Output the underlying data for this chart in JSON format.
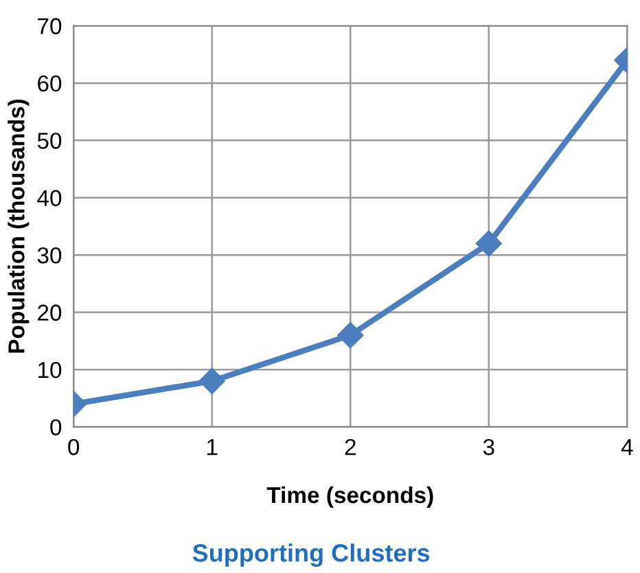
{
  "chart_data": {
    "type": "line",
    "xlabel": "Time (seconds)",
    "ylabel": "Population (thousands)",
    "x": [
      0,
      1,
      2,
      3,
      4
    ],
    "series": [
      {
        "color": "#4a7ebf",
        "values": [
          4,
          8,
          16,
          32,
          64
        ]
      }
    ],
    "xlim": [
      0,
      4
    ],
    "xticks": [
      0,
      1,
      2,
      3,
      4
    ],
    "ylim": [
      0,
      70
    ],
    "yticks": [
      0,
      10,
      20,
      30,
      40,
      50,
      60,
      70
    ],
    "grid": true,
    "marker": "diamond",
    "line_style": "solid",
    "annotations": [
      "Supporting Clusters"
    ]
  }
}
